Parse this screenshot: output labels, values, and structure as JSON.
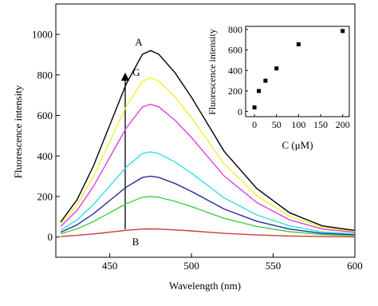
{
  "chart_data": [
    {
      "type": "line",
      "xlabel": "Wavelength (nm)",
      "ylabel": "Fluorescence intensity",
      "x": [
        420,
        430,
        440,
        450,
        460,
        470,
        475,
        480,
        490,
        500,
        520,
        540,
        560,
        580,
        600
      ],
      "series": [
        {
          "color": "#000000",
          "values": [
            74,
            184,
            350,
            552,
            754,
            902,
            920,
            902,
            810,
            690,
            423,
            239,
            120,
            55,
            32
          ]
        },
        {
          "color": "#f2f230",
          "values": [
            63,
            157,
            298,
            471,
            644,
            769,
            785,
            769,
            691,
            589,
            361,
            204,
            102,
            47,
            27
          ]
        },
        {
          "color": "#e040e0",
          "values": [
            52,
            131,
            249,
            393,
            537,
            642,
            655,
            642,
            576,
            491,
            301,
            170,
            85,
            39,
            23
          ]
        },
        {
          "color": "#30e0e8",
          "values": [
            34,
            84,
            160,
            252,
            344,
            412,
            420,
            412,
            370,
            315,
            193,
            109,
            55,
            25,
            15
          ]
        },
        {
          "color": "#2a2a9a",
          "values": [
            24,
            60,
            114,
            180,
            246,
            294,
            300,
            294,
            264,
            225,
            138,
            78,
            39,
            18,
            11
          ]
        },
        {
          "color": "#40d040",
          "values": [
            16,
            40,
            76,
            120,
            164,
            196,
            200,
            196,
            176,
            150,
            92,
            52,
            26,
            12,
            7
          ]
        },
        {
          "color": "#c83c3c",
          "values": [
            3,
            8,
            15,
            24,
            33,
            39,
            40,
            39,
            35,
            30,
            18,
            10,
            5,
            2,
            1
          ]
        }
      ],
      "xlim": [
        417,
        600
      ],
      "xticks": [
        450,
        500,
        550,
        600
      ],
      "ylim": [
        -100,
        1150
      ],
      "yticks": [
        0,
        200,
        400,
        600,
        800,
        1000
      ],
      "annotations": [
        "A",
        "G",
        "B"
      ]
    },
    {
      "type": "scatter",
      "xlabel": "C (μM)",
      "ylabel": "Fluorescence intensity",
      "x": [
        0,
        10,
        25,
        50,
        100,
        200
      ],
      "values": [
        40,
        200,
        300,
        420,
        655,
        785
      ],
      "color": "#000000",
      "xlim": [
        -20,
        215
      ],
      "xticks": [
        0,
        50,
        100,
        150,
        200
      ],
      "ylim": [
        -50,
        830
      ],
      "yticks": [
        0,
        200,
        400,
        600,
        800
      ]
    }
  ]
}
